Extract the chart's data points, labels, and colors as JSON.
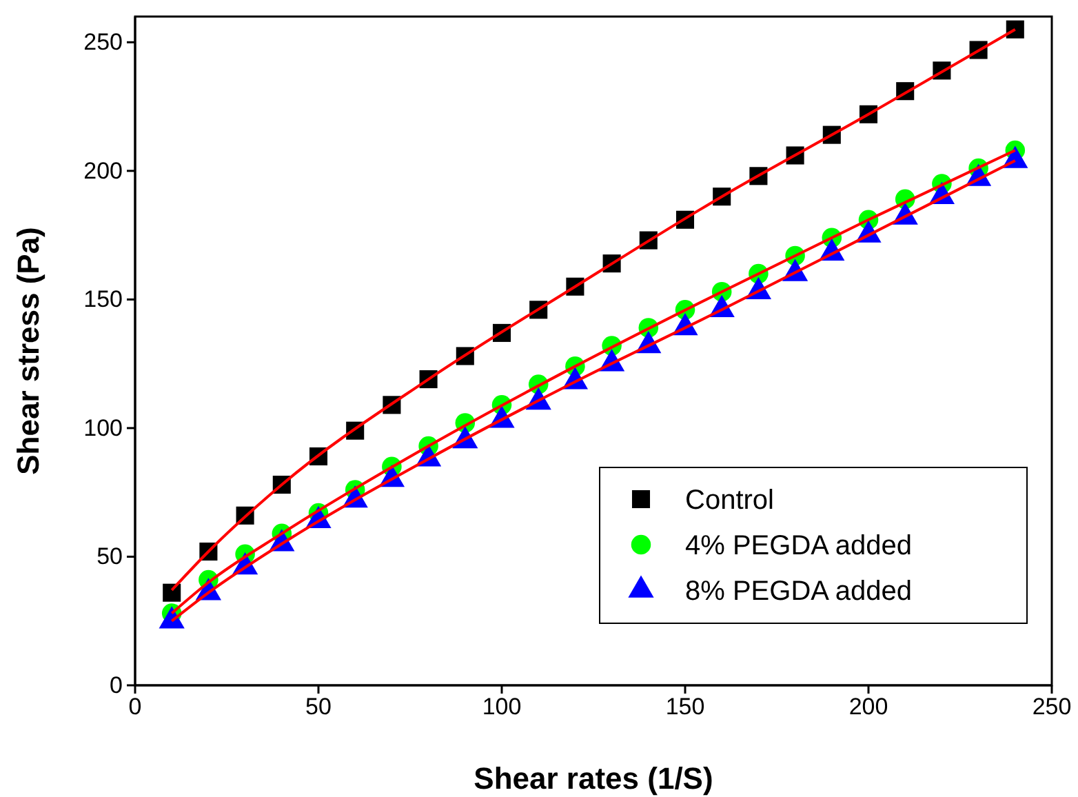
{
  "chart_data": {
    "type": "scatter",
    "xlabel": "Shear rates  (1/S)",
    "ylabel": "Shear stress (Pa)",
    "x": [
      10,
      20,
      30,
      40,
      50,
      60,
      70,
      80,
      90,
      100,
      110,
      120,
      130,
      140,
      150,
      160,
      170,
      180,
      190,
      200,
      210,
      220,
      230,
      240
    ],
    "series": [
      {
        "name": "Control",
        "color": "#000000",
        "marker": "square",
        "values": [
          36,
          52,
          66,
          78,
          89,
          99,
          109,
          119,
          128,
          137,
          146,
          155,
          164,
          173,
          181,
          190,
          198,
          206,
          214,
          222,
          231,
          239,
          247,
          255
        ]
      },
      {
        "name": "4% PEGDA added",
        "color": "#00ff00",
        "marker": "circle",
        "values": [
          28,
          41,
          51,
          59,
          67,
          76,
          85,
          93,
          102,
          109,
          117,
          124,
          132,
          139,
          146,
          153,
          160,
          167,
          174,
          181,
          189,
          195,
          201,
          208
        ]
      },
      {
        "name": "8% PEGDA added",
        "color": "#0000ff",
        "marker": "triangle",
        "values": [
          25,
          36,
          46,
          55,
          64,
          72,
          80,
          88,
          95,
          103,
          110,
          118,
          125,
          132,
          139,
          146,
          153,
          160,
          168,
          175,
          182,
          190,
          197,
          204
        ]
      },
      {
        "type": "line",
        "color": "#ff0000",
        "marker": "none",
        "x": [
          10,
          20,
          40,
          80,
          120,
          160,
          200,
          240
        ],
        "values": [
          37,
          52,
          78,
          119,
          155,
          190,
          222,
          255
        ]
      },
      {
        "type": "line",
        "color": "#ff0000",
        "marker": "none",
        "x": [
          10,
          20,
          40,
          80,
          120,
          160,
          200,
          240
        ],
        "values": [
          28,
          40,
          59,
          93,
          124,
          153,
          181,
          208
        ]
      },
      {
        "type": "line",
        "color": "#ff0000",
        "marker": "none",
        "x": [
          10,
          20,
          40,
          80,
          120,
          160,
          200,
          240
        ],
        "values": [
          25,
          36,
          55,
          88,
          118,
          146,
          175,
          204
        ]
      }
    ],
    "xlim": [
      0,
      250
    ],
    "xticks": [
      0,
      50,
      100,
      150,
      200,
      250
    ],
    "ylim": [
      0,
      260
    ],
    "yticks": [
      0,
      50,
      100,
      150,
      200,
      250
    ],
    "grid": false,
    "legend": "bottom right"
  }
}
